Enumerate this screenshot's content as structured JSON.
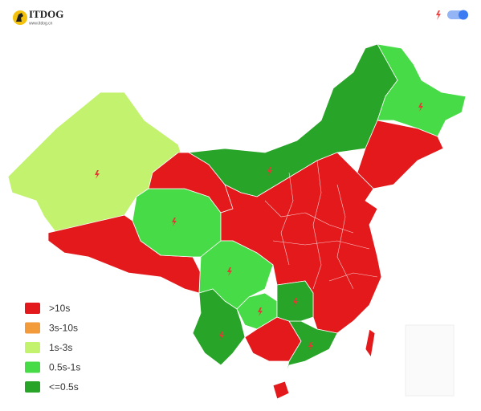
{
  "logo": {
    "title": "ITDOG",
    "subtitle": "www.itdog.cn"
  },
  "legend": [
    {
      "label": ">10s",
      "color": "#e3191b"
    },
    {
      "label": "3s-10s",
      "color": "#f39a3b"
    },
    {
      "label": "1s-3s",
      "color": "#c2f26e"
    },
    {
      "label": "0.5s-1s",
      "color": "#47dc47"
    },
    {
      "label": "<=0.5s",
      "color": "#28a428"
    }
  ]
}
